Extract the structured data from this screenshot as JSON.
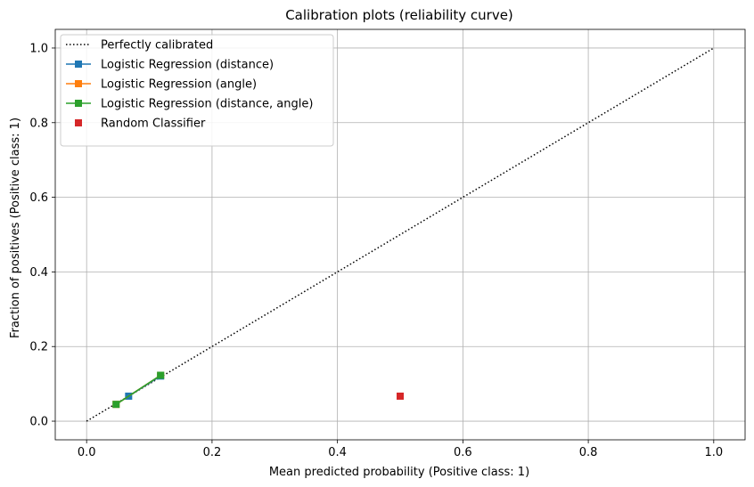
{
  "chart_data": {
    "type": "line",
    "title": "Calibration plots (reliability curve)",
    "xlabel": "Mean predicted probability (Positive class: 1)",
    "ylabel": "Fraction of positives (Positive class: 1)",
    "xlim": [
      -0.05,
      1.05
    ],
    "ylim": [
      -0.05,
      1.05
    ],
    "xticks": [
      0.0,
      0.2,
      0.4,
      0.6,
      0.8,
      1.0
    ],
    "yticks": [
      0.0,
      0.2,
      0.4,
      0.6,
      0.8,
      1.0
    ],
    "xtick_labels": [
      "0.0",
      "0.2",
      "0.4",
      "0.6",
      "0.8",
      "1.0"
    ],
    "ytick_labels": [
      "0.0",
      "0.2",
      "0.4",
      "0.6",
      "0.8",
      "1.0"
    ],
    "grid": true,
    "legend_position": "upper-left",
    "series": [
      {
        "name": "Perfectly calibrated",
        "color": "#000000",
        "style": "dotted",
        "marker": "none",
        "points": [
          [
            0.0,
            0.0
          ],
          [
            1.0,
            1.0
          ]
        ]
      },
      {
        "name": "Logistic Regression (distance)",
        "color": "#1f77b4",
        "style": "solid",
        "marker": "square",
        "points": [
          [
            0.067,
            0.067
          ],
          [
            0.118,
            0.121
          ]
        ]
      },
      {
        "name": "Logistic Regression (angle)",
        "color": "#ff7f0e",
        "style": "solid",
        "marker": "square",
        "points": [
          [
            0.047,
            0.045
          ],
          [
            0.118,
            0.123
          ]
        ]
      },
      {
        "name": "Logistic Regression (distance, angle)",
        "color": "#2ca02c",
        "style": "solid",
        "marker": "square",
        "points": [
          [
            0.047,
            0.045
          ],
          [
            0.118,
            0.123
          ]
        ]
      },
      {
        "name": "Random Classifier",
        "color": "#d62728",
        "style": "none",
        "marker": "square",
        "points": [
          [
            0.5,
            0.067
          ]
        ]
      }
    ]
  }
}
